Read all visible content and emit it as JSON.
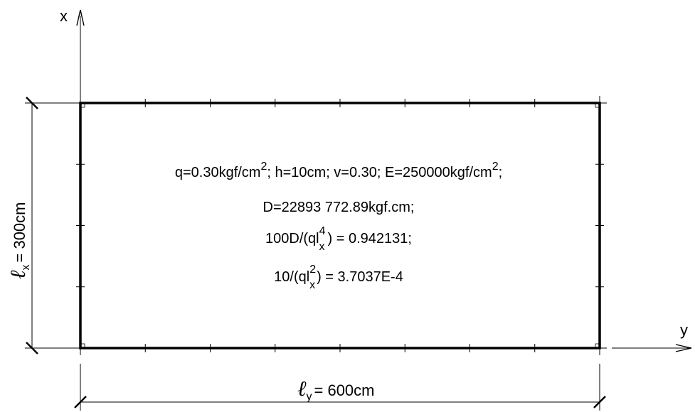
{
  "axes": {
    "x_label": "x",
    "y_label": "y"
  },
  "dimensions": {
    "lx": {
      "symbol": "ℓ",
      "sub": "x",
      "text": "= 300cm"
    },
    "ly": {
      "symbol": "ℓ",
      "sub": "y",
      "text": "= 600cm"
    }
  },
  "formulas": {
    "line1": {
      "q": "q=0.30kgf/cm",
      "q_exp": "2",
      "rest": "; h=10cm; v=0.30; E=250000kgf/cm",
      "e_exp": "2",
      "end": ";"
    },
    "line2": {
      "text": "D=22893 772.89kgf.cm;"
    },
    "line3": {
      "pre": "100D/(ql",
      "exp": "4",
      "sub": "x",
      "post": ") = 0.942131;"
    },
    "line4": {
      "pre": "10/(ql",
      "exp": "2",
      "sub": "x",
      "post": ") = 3.7037E-4"
    }
  }
}
